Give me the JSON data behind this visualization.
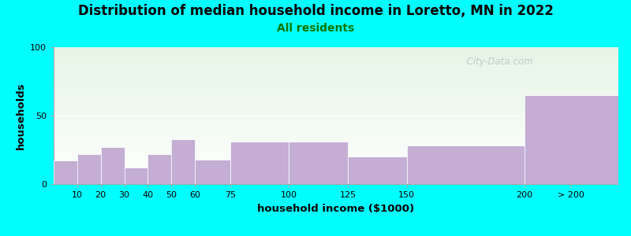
{
  "title": "Distribution of median household income in Loretto, MN in 2022",
  "subtitle": "All residents",
  "xlabel": "household income ($1000)",
  "ylabel": "households",
  "background_color": "#00FFFF",
  "bar_color": "#C4AED4",
  "bar_edge_color": "#C4AED4",
  "ylim": [
    0,
    100
  ],
  "yticks": [
    0,
    50,
    100
  ],
  "bin_edges": [
    0,
    10,
    20,
    30,
    40,
    50,
    60,
    75,
    100,
    125,
    150,
    200,
    240
  ],
  "tick_labels": [
    "10",
    "20",
    "30",
    "40",
    "50",
    "60",
    "75",
    "100",
    "125",
    "150",
    "200",
    "> 200"
  ],
  "tick_positions": [
    10,
    20,
    30,
    40,
    50,
    60,
    75,
    100,
    125,
    150,
    200,
    220
  ],
  "values": [
    17,
    22,
    27,
    12,
    22,
    33,
    18,
    31,
    31,
    20,
    28,
    65
  ],
  "watermark": "  City-Data.com",
  "title_fontsize": 12,
  "subtitle_fontsize": 10,
  "axis_label_fontsize": 9.5,
  "tick_fontsize": 8
}
